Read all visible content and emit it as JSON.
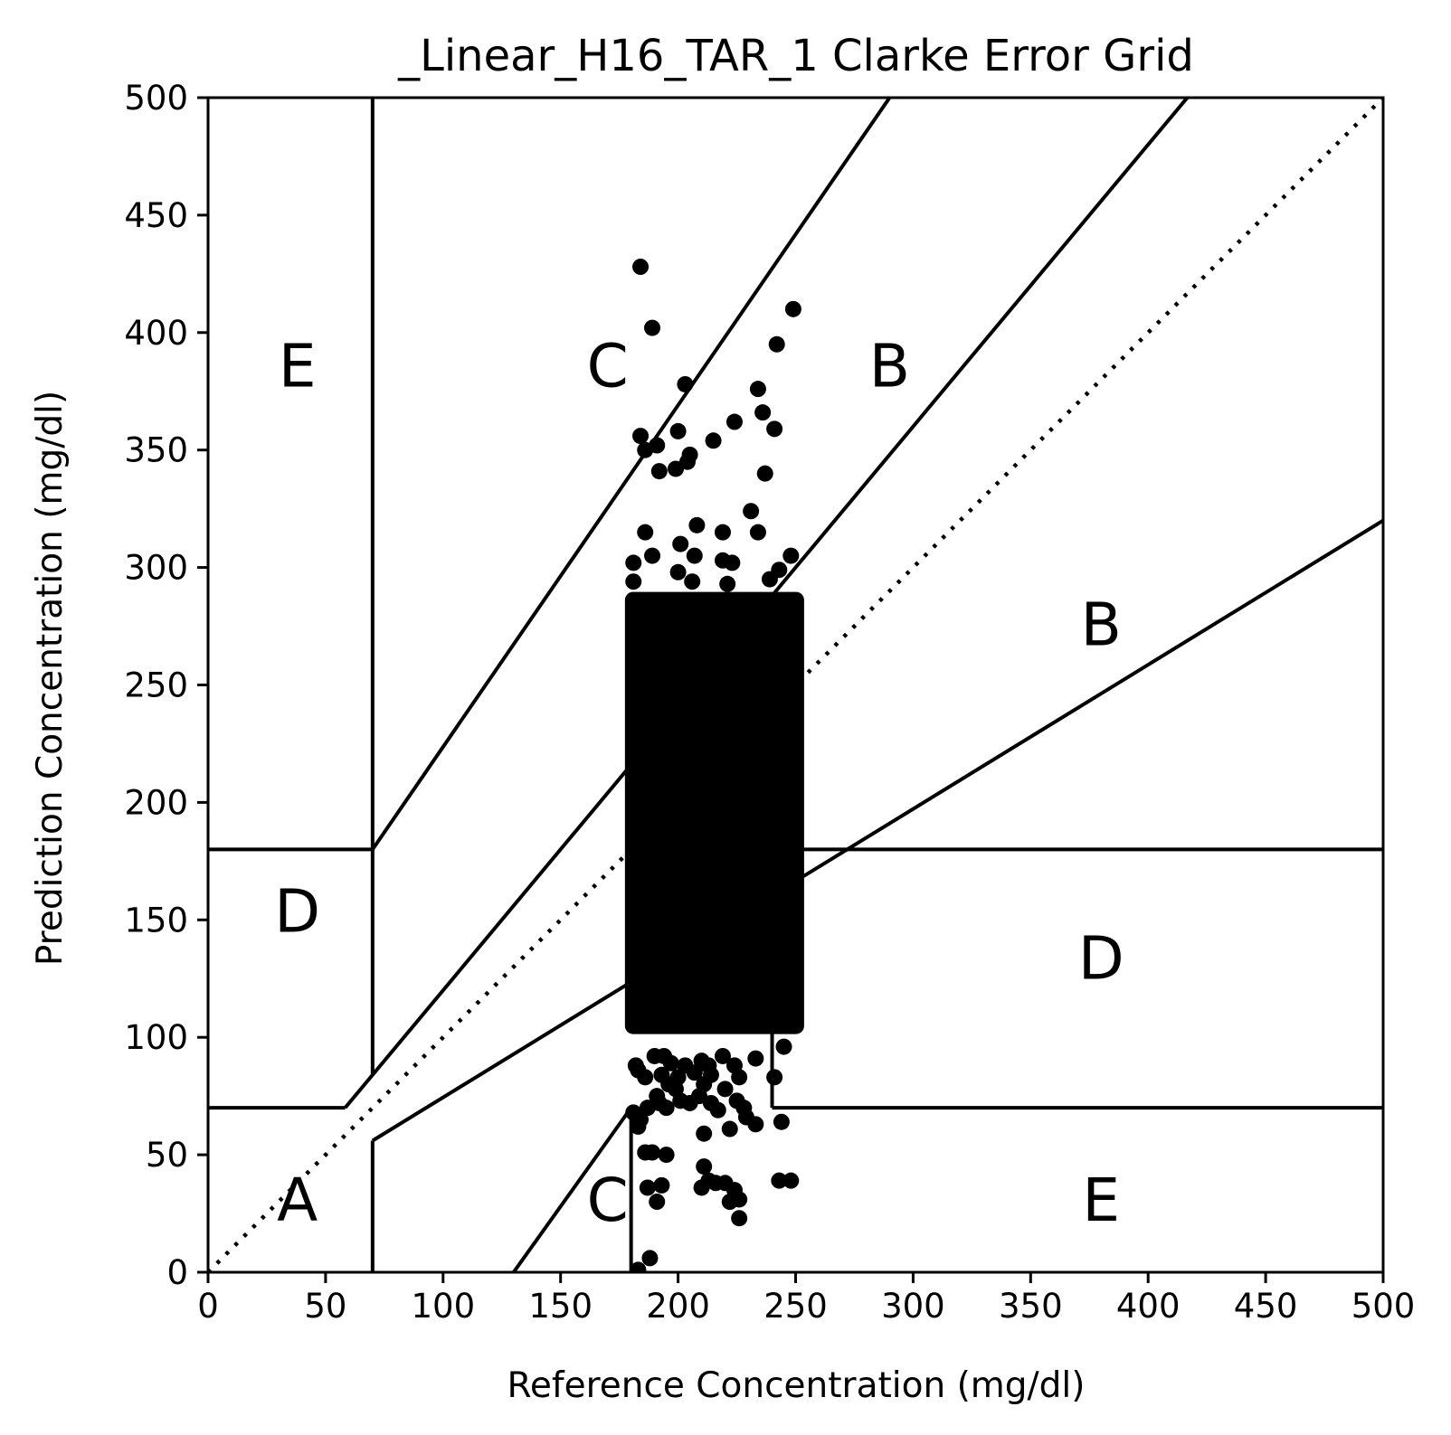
{
  "chart_data": {
    "type": "scatter",
    "title": "_Linear_H16_TAR_1 Clarke Error Grid",
    "xlabel": "Reference Concentration (mg/dl)",
    "ylabel": "Prediction Concentration (mg/dl)",
    "xlim": [
      0,
      500
    ],
    "ylim": [
      0,
      500
    ],
    "xticks": [
      0,
      50,
      100,
      150,
      200,
      250,
      300,
      350,
      400,
      450,
      500
    ],
    "yticks": [
      0,
      50,
      100,
      150,
      200,
      250,
      300,
      350,
      400,
      450,
      500
    ],
    "grid": false,
    "legend": "none",
    "colors": {
      "points": "#000000",
      "lines": "#000000",
      "background": "#ffffff"
    },
    "zone_lines": [
      {
        "x": [
          0,
          500
        ],
        "y": [
          0,
          500
        ],
        "style": "dotted"
      },
      {
        "x": [
          0,
          58.33
        ],
        "y": [
          70,
          70
        ]
      },
      {
        "x": [
          70,
          290
        ],
        "y": [
          180,
          500
        ]
      },
      {
        "x": [
          70,
          70
        ],
        "y": [
          84,
          500
        ]
      },
      {
        "x": [
          0,
          70
        ],
        "y": [
          180,
          180
        ]
      },
      {
        "x": [
          70,
          500
        ],
        "y": [
          56,
          320
        ]
      },
      {
        "x": [
          70,
          70
        ],
        "y": [
          0,
          56
        ]
      },
      {
        "x": [
          58.33,
          416.67
        ],
        "y": [
          70,
          500
        ]
      },
      {
        "x": [
          240,
          240
        ],
        "y": [
          70,
          180
        ]
      },
      {
        "x": [
          240,
          500
        ],
        "y": [
          70,
          70
        ]
      },
      {
        "x": [
          130,
          180
        ],
        "y": [
          0,
          70
        ]
      },
      {
        "x": [
          180,
          180
        ],
        "y": [
          0,
          70
        ]
      },
      {
        "x": [
          240,
          500
        ],
        "y": [
          180,
          180
        ]
      }
    ],
    "region_labels": [
      {
        "text": "E",
        "x": 38,
        "y": 377
      },
      {
        "text": "C",
        "x": 170,
        "y": 377
      },
      {
        "text": "B",
        "x": 290,
        "y": 377
      },
      {
        "text": "B",
        "x": 380,
        "y": 267
      },
      {
        "text": "D",
        "x": 38,
        "y": 145
      },
      {
        "text": "D",
        "x": 380,
        "y": 125
      },
      {
        "text": "A",
        "x": 38,
        "y": 22
      },
      {
        "text": "C",
        "x": 170,
        "y": 22
      },
      {
        "text": "E",
        "x": 380,
        "y": 22
      }
    ],
    "dense_cluster": {
      "x_range": [
        179,
        252
      ],
      "y_range": [
        103,
        288
      ]
    },
    "outlier_points": [
      [
        184,
        428
      ],
      [
        189,
        402
      ],
      [
        249,
        410
      ],
      [
        242,
        395
      ],
      [
        203,
        378
      ],
      [
        234,
        376
      ],
      [
        236,
        366
      ],
      [
        224,
        362
      ],
      [
        184,
        356
      ],
      [
        200,
        358
      ],
      [
        241,
        359
      ],
      [
        191,
        352
      ],
      [
        215,
        354
      ],
      [
        186,
        350
      ],
      [
        205,
        348
      ],
      [
        204,
        345
      ],
      [
        192,
        341
      ],
      [
        199,
        342
      ],
      [
        237,
        340
      ],
      [
        231,
        324
      ],
      [
        208,
        318
      ],
      [
        186,
        315
      ],
      [
        219,
        315
      ],
      [
        234,
        315
      ],
      [
        201,
        310
      ],
      [
        207,
        305
      ],
      [
        189,
        305
      ],
      [
        248,
        305
      ],
      [
        181,
        302
      ],
      [
        200,
        298
      ],
      [
        219,
        303
      ],
      [
        223,
        302
      ],
      [
        243,
        299
      ],
      [
        181,
        294
      ],
      [
        206,
        294
      ],
      [
        221,
        293
      ],
      [
        239,
        295
      ],
      [
        194,
        92
      ],
      [
        197,
        89
      ],
      [
        203,
        88
      ],
      [
        210,
        90
      ],
      [
        213,
        88
      ],
      [
        219,
        92
      ],
      [
        224,
        88
      ],
      [
        233,
        91
      ],
      [
        245,
        96
      ],
      [
        182,
        88
      ],
      [
        183,
        86
      ],
      [
        190,
        92
      ],
      [
        186,
        83
      ],
      [
        193,
        84
      ],
      [
        200,
        83
      ],
      [
        207,
        85
      ],
      [
        214,
        84
      ],
      [
        226,
        83
      ],
      [
        241,
        83
      ],
      [
        196,
        80
      ],
      [
        211,
        80
      ],
      [
        220,
        78
      ],
      [
        191,
        75
      ],
      [
        199,
        78
      ],
      [
        209,
        75
      ],
      [
        214,
        72
      ],
      [
        225,
        73
      ],
      [
        192,
        72
      ],
      [
        201,
        73
      ],
      [
        205,
        72
      ],
      [
        187,
        70
      ],
      [
        195,
        70
      ],
      [
        217,
        69
      ],
      [
        228,
        70
      ],
      [
        244,
        64
      ],
      [
        233,
        63
      ],
      [
        229,
        66
      ],
      [
        222,
        61
      ],
      [
        211,
        59
      ],
      [
        183,
        62
      ],
      [
        184,
        65
      ],
      [
        181,
        68
      ],
      [
        186,
        51
      ],
      [
        189,
        51
      ],
      [
        195,
        50
      ],
      [
        211,
        45
      ],
      [
        213,
        39
      ],
      [
        216,
        38
      ],
      [
        220,
        38
      ],
      [
        210,
        36
      ],
      [
        243,
        39
      ],
      [
        248,
        39
      ],
      [
        224,
        35
      ],
      [
        193,
        37
      ],
      [
        187,
        36
      ],
      [
        226,
        31
      ],
      [
        222,
        30
      ],
      [
        191,
        30
      ],
      [
        226,
        23
      ],
      [
        188,
        6
      ],
      [
        183,
        1
      ]
    ]
  }
}
